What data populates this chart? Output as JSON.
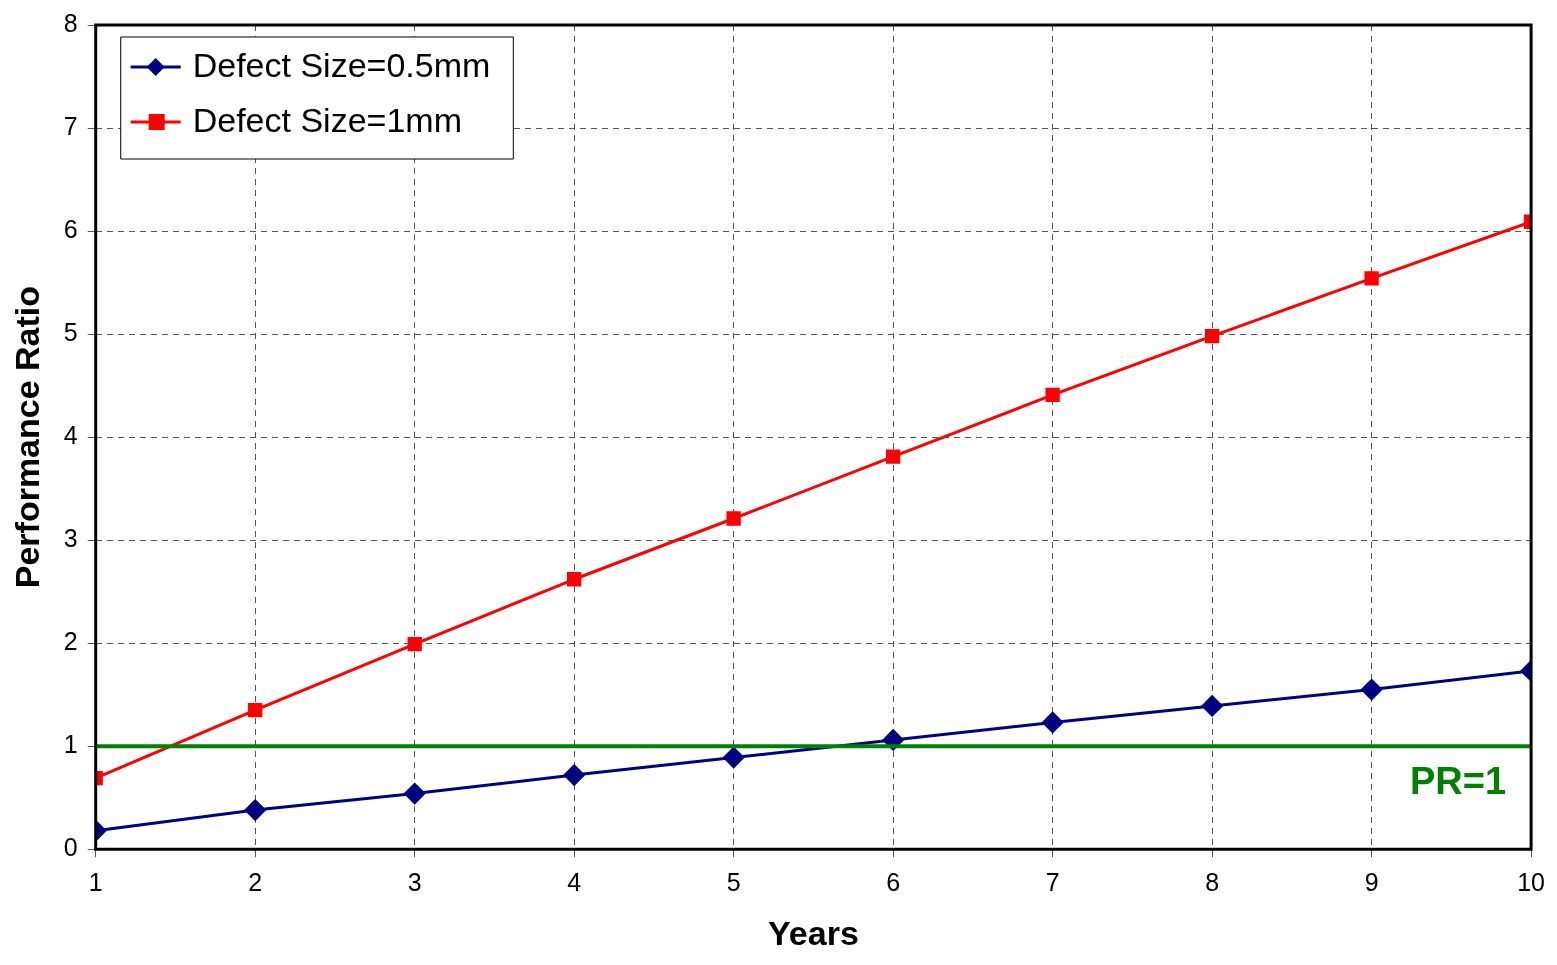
{
  "chart_data": {
    "type": "line",
    "xlabel": "Years",
    "ylabel": "Performance Ratio",
    "x": [
      1,
      2,
      3,
      4,
      5,
      6,
      7,
      8,
      9,
      10
    ],
    "series": [
      {
        "name": "Defect Size=0.5mm",
        "color": "#000080",
        "marker": "diamond",
        "values": [
          0.18,
          0.38,
          0.54,
          0.72,
          0.89,
          1.06,
          1.23,
          1.39,
          1.55,
          1.73
        ]
      },
      {
        "name": "Defect Size=1mm",
        "color": "#ff0000",
        "marker": "square",
        "values": [
          0.69,
          1.35,
          1.99,
          2.62,
          3.21,
          3.81,
          4.41,
          4.98,
          5.54,
          6.09
        ]
      }
    ],
    "xlim": [
      1,
      10
    ],
    "xticks": [
      1,
      2,
      3,
      4,
      5,
      6,
      7,
      8,
      9,
      10
    ],
    "ylim": [
      0,
      8
    ],
    "yticks": [
      0,
      1,
      2,
      3,
      4,
      5,
      6,
      7,
      8
    ],
    "grid": true,
    "legend": "top left",
    "line_style": "solid",
    "ref_lines": [
      {
        "axis": "y",
        "value": 1,
        "label": "PR=1",
        "color": "#008000"
      }
    ]
  }
}
